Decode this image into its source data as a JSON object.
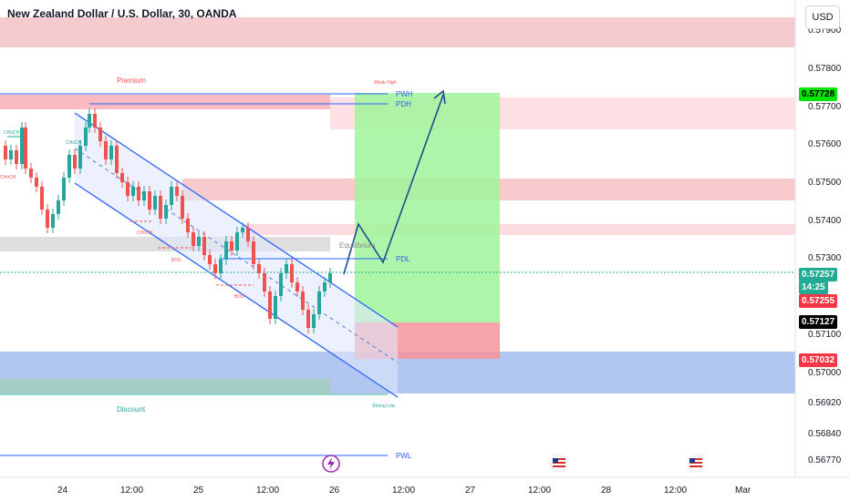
{
  "header": {
    "title": "New Zealand Dollar / U.S. Dollar, 30, OANDA",
    "currency": "USD"
  },
  "chart_data": {
    "type": "candlestick",
    "title": "New Zealand Dollar / U.S. Dollar, 30, OANDA",
    "y_axis": {
      "ticks": [
        "0.57900",
        "0.57800",
        "0.57700",
        "0.57600",
        "0.57500",
        "0.57400",
        "0.57300",
        "0.57100",
        "0.57000",
        "0.56920",
        "0.56840",
        "0.56770"
      ]
    },
    "x_axis": {
      "ticks": [
        "24",
        "12:00",
        "25",
        "12:00",
        "26",
        "12:00",
        "27",
        "12:00",
        "28",
        "12:00",
        "Mar"
      ]
    },
    "price_tags": [
      {
        "value": "0.57728",
        "color": "#00e600",
        "text_color": "#000000"
      },
      {
        "value": "0.57257",
        "color": "#22ab94",
        "text_color": "#ffffff"
      },
      {
        "value": "14:25",
        "color": "#22ab94",
        "text_color": "#ffffff"
      },
      {
        "value": "0.57255",
        "color": "#f23645",
        "text_color": "#ffffff"
      },
      {
        "value": "0.57127",
        "color": "#000000",
        "text_color": "#ffffff"
      },
      {
        "value": "0.57032",
        "color": "#f23645",
        "text_color": "#ffffff"
      }
    ],
    "annotations": {
      "premium": "Premium",
      "discount": "Discount",
      "equilibrium": "Equilibrium",
      "weak_high": "Weak High",
      "strong_low": "Strong Low",
      "pwh": "PWH",
      "pdh": "PDH",
      "pdl": "PDL",
      "pwl": "PWL",
      "choch_1": "CHoCH",
      "choch_2": "CHoCH",
      "choch_3": "CHoCH",
      "choch_4": "CHoCH",
      "bos_1": "BOS",
      "bos_2": "BOS"
    },
    "colors": {
      "bull": "#26a69a",
      "bear": "#ef5350",
      "channel": "#2962ff",
      "projection": "#1e4d8c"
    }
  }
}
